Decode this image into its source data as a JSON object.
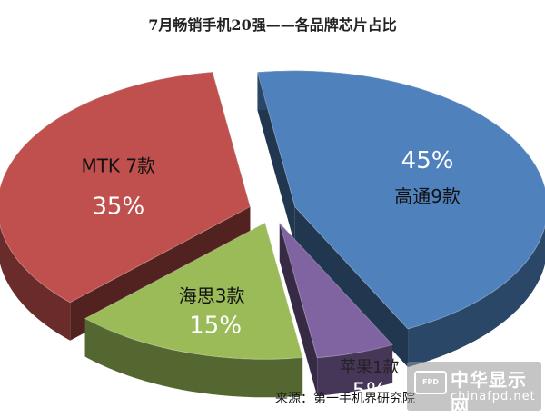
{
  "chart_data": {
    "type": "pie",
    "title": "7月畅销手机20强——各品牌芯片占比",
    "slices": [
      {
        "label": "高通9款",
        "percent_label": "45%",
        "value": 45,
        "color": "#4f81bd"
      },
      {
        "label": "苹果1款",
        "percent_label": "5%",
        "value": 5,
        "color": "#8064a2"
      },
      {
        "label": "海思3款",
        "percent_label": "15%",
        "value": 15,
        "color": "#9bbb59"
      },
      {
        "label": "MTK 7款",
        "percent_label": "35%",
        "value": 35,
        "color": "#c0504d"
      }
    ],
    "style": "3d-exploded"
  },
  "source": "来源：第一手机界研究院",
  "watermark": {
    "logo_text": "FPD",
    "name": "中华显示网",
    "url": "chinafpd.net"
  }
}
